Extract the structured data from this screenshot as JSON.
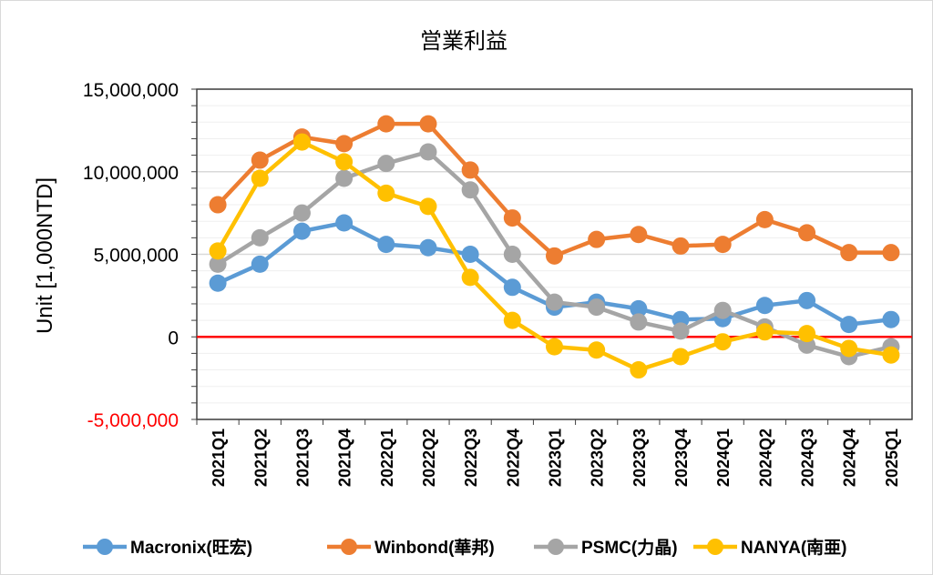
{
  "chart_data": {
    "type": "line",
    "title": "営業利益",
    "ylabel": "Unit [1,000NTD]",
    "xlabel": "",
    "ylim": [
      -5000000,
      15000000
    ],
    "yticks": [
      "15,000,000",
      "10,000,000",
      "5,000,000",
      "0",
      "-5,000,000"
    ],
    "ytick_values": [
      15000000,
      10000000,
      5000000,
      0,
      -5000000
    ],
    "negative_tick_color": "#ff0000",
    "zero_line_color": "#ff0000",
    "grid": true,
    "legend": "bottom",
    "categories": [
      "2021Q1",
      "2021Q2",
      "2021Q3",
      "2021Q4",
      "2022Q1",
      "2022Q2",
      "2022Q3",
      "2022Q4",
      "2023Q1",
      "2023Q2",
      "2023Q3",
      "2023Q4",
      "2024Q1",
      "2024Q2",
      "2024Q3",
      "2024Q4",
      "2025Q1"
    ],
    "series": [
      {
        "name": "Macronix(旺宏)",
        "color": "#5b9bd5",
        "values": [
          3250000,
          4400000,
          6400000,
          6900000,
          5600000,
          5400000,
          5000000,
          3000000,
          1800000,
          2100000,
          1700000,
          1050000,
          1100000,
          1900000,
          2200000,
          750000,
          1050000
        ]
      },
      {
        "name": "Winbond(華邦)",
        "color": "#ed7d31",
        "values": [
          8000000,
          10700000,
          12100000,
          11700000,
          12900000,
          12900000,
          10100000,
          7200000,
          4900000,
          5900000,
          6200000,
          5500000,
          5600000,
          7100000,
          6300000,
          5100000,
          5100000
        ]
      },
      {
        "name": "PSMC(力晶)",
        "color": "#a5a5a5",
        "values": [
          4400000,
          6000000,
          7500000,
          9600000,
          10500000,
          11200000,
          8900000,
          5000000,
          2100000,
          1800000,
          900000,
          350000,
          1600000,
          600000,
          -500000,
          -1200000,
          -600000
        ]
      },
      {
        "name": "NANYA(南亜)",
        "color": "#ffc000",
        "values": [
          5200000,
          9600000,
          11800000,
          10600000,
          8700000,
          7900000,
          3600000,
          1000000,
          -600000,
          -800000,
          -2000000,
          -1200000,
          -300000,
          300000,
          200000,
          -700000,
          -1100000
        ]
      }
    ]
  }
}
